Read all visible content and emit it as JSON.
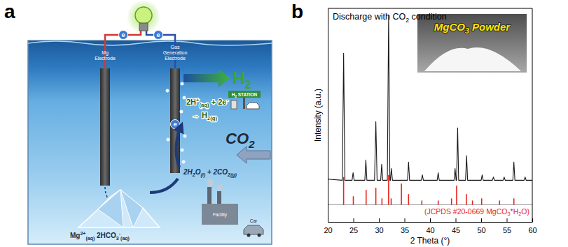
{
  "figure": {
    "panel_labels": [
      "a",
      "b"
    ]
  },
  "diagram": {
    "electrodes": [
      "Mg Electrode",
      "Gas Generation Electrode"
    ],
    "electrons": [
      "e",
      "e",
      "e"
    ],
    "reactions": {
      "cathode": [
        "2H+(aq) + 2e-",
        "→ H2(g)"
      ],
      "capture": "2H2O(l) + 2CO2(g)",
      "product": "Mg2+(aq) 2HCO3-(aq)"
    },
    "outputs": {
      "gas": "H2",
      "station": "H2 STATION"
    },
    "inputs": {
      "gas": "CO2",
      "sources": [
        "Facility",
        "Car"
      ]
    }
  },
  "chart_data": {
    "type": "line",
    "title": "Discharge with CO2 condition",
    "x_label": "2 Theta (°)",
    "y_label": "Intensity (a.u.)",
    "annotations": [
      "MgCO3 Powder"
    ],
    "xlim": [
      20,
      60
    ],
    "xticks": [
      20,
      25,
      30,
      35,
      40,
      45,
      50,
      55,
      60
    ],
    "ylim": [
      0,
      100
    ],
    "tick_labels": "x",
    "series": [
      {
        "color": "#1a1a1a",
        "x": [
          20,
          22.85,
          23.1,
          23.35,
          24.75,
          24.95,
          25.15,
          27.25,
          27.45,
          27.65,
          29.15,
          29.4,
          29.65,
          30.35,
          30.55,
          30.75,
          31.65,
          31.9,
          32.15,
          32.25,
          32.45,
          32.65,
          35.6,
          35.8,
          36.0,
          38.3,
          38.5,
          38.7,
          41.4,
          41.6,
          41.8,
          44.7,
          44.9,
          45.1,
          45.2,
          45.4,
          45.6,
          46.95,
          47.15,
          47.35,
          50.0,
          50.2,
          50.4,
          52.2,
          52.4,
          52.6,
          54.3,
          54.5,
          54.7,
          56.2,
          56.4,
          56.6,
          58.4,
          58.6,
          58.8,
          60
        ],
        "values": [
          20,
          19.5,
          79,
          19.5,
          19.5,
          23,
          19.5,
          19.5,
          29,
          19.5,
          19.5,
          47,
          19.5,
          19.5,
          27,
          19.5,
          19.5,
          97,
          19.5,
          19.5,
          25,
          19.5,
          19.5,
          28,
          19.5,
          19.5,
          22,
          19.5,
          19.5,
          23,
          19.5,
          19.5,
          25,
          19.5,
          19.5,
          44,
          19.5,
          19.5,
          31,
          19.5,
          19.5,
          22,
          19.5,
          19.5,
          21,
          19.5,
          19.5,
          21,
          19.5,
          19.5,
          28,
          19.5,
          19.5,
          21,
          19.5,
          19.5
        ]
      },
      {
        "name": "(JCPDS #20-0669 MgCO3*H2O)",
        "type": "stick",
        "color": "#e8251c",
        "baseline": 8,
        "x": [
          23.1,
          25.0,
          27.5,
          29.4,
          30.6,
          31.9,
          32.4,
          34.4,
          35.8,
          38.4,
          41.6,
          44.2,
          45.2,
          47.1,
          48.3,
          50.1,
          53.6,
          56.4
        ],
        "values": [
          21,
          12,
          15,
          16,
          11,
          22,
          11,
          18,
          13,
          10,
          10,
          11,
          17,
          13,
          10,
          11,
          10,
          11
        ]
      }
    ]
  }
}
